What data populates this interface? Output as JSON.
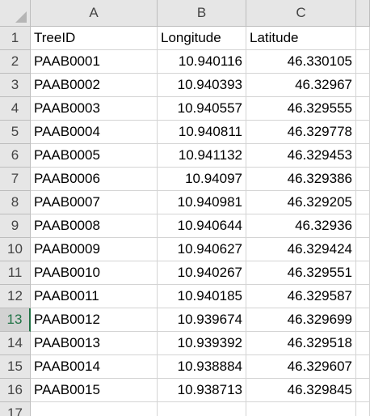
{
  "columns": [
    "A",
    "B",
    "C"
  ],
  "header_values": [
    "TreeID",
    "Longitude",
    "Latitude"
  ],
  "rows": [
    {
      "num": "2",
      "id": "PAAB0001",
      "lon": "10.940116",
      "lat": "46.330105"
    },
    {
      "num": "3",
      "id": "PAAB0002",
      "lon": "10.940393",
      "lat": "46.32967"
    },
    {
      "num": "4",
      "id": "PAAB0003",
      "lon": "10.940557",
      "lat": "46.329555"
    },
    {
      "num": "5",
      "id": "PAAB0004",
      "lon": "10.940811",
      "lat": "46.329778"
    },
    {
      "num": "6",
      "id": "PAAB0005",
      "lon": "10.941132",
      "lat": "46.329453"
    },
    {
      "num": "7",
      "id": "PAAB0006",
      "lon": "10.94097",
      "lat": "46.329386"
    },
    {
      "num": "8",
      "id": "PAAB0007",
      "lon": "10.940981",
      "lat": "46.329205"
    },
    {
      "num": "9",
      "id": "PAAB0008",
      "lon": "10.940644",
      "lat": "46.32936"
    },
    {
      "num": "10",
      "id": "PAAB0009",
      "lon": "10.940627",
      "lat": "46.329424"
    },
    {
      "num": "11",
      "id": "PAAB0010",
      "lon": "10.940267",
      "lat": "46.329551"
    },
    {
      "num": "12",
      "id": "PAAB0011",
      "lon": "10.940185",
      "lat": "46.329587"
    },
    {
      "num": "13",
      "id": "PAAB0012",
      "lon": "10.939674",
      "lat": "46.329699"
    },
    {
      "num": "14",
      "id": "PAAB0013",
      "lon": "10.939392",
      "lat": "46.329518"
    },
    {
      "num": "15",
      "id": "PAAB0014",
      "lon": "10.938884",
      "lat": "46.329607"
    },
    {
      "num": "16",
      "id": "PAAB0015",
      "lon": "10.938713",
      "lat": "46.329845"
    }
  ],
  "header_row_num": "1",
  "empty_row_num": "17",
  "selected_row": "13",
  "colors": {
    "header_bg": "#e6e6e6",
    "grid_line": "#d4d4d4",
    "selection_accent": "#217346"
  },
  "icons": {
    "corner": "select-all-triangle-icon"
  }
}
